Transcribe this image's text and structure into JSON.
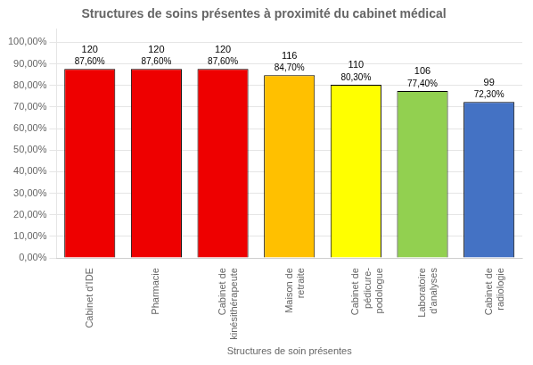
{
  "chart_data": {
    "type": "bar",
    "title": "Structures de soins présentes à proximité du cabinet médical",
    "xlabel": "Structures de soin présentes",
    "categories": [
      "Cabinet d'IDE",
      "Pharmacie",
      "Cabinet de\nkinésithérapeute",
      "Maison de\nretraite",
      "Cabinet de\npédicure-\npodologue",
      "Laboratoire\nd'analyses",
      "Cabinet de\nradiologie"
    ],
    "values": [
      87.6,
      87.6,
      87.6,
      84.7,
      80.3,
      77.4,
      72.3
    ],
    "value_labels": [
      "87,60%",
      "87,60%",
      "87,60%",
      "84,70%",
      "80,30%",
      "77,40%",
      "72,30%"
    ],
    "counts": [
      120,
      120,
      120,
      116,
      110,
      106,
      99
    ],
    "colors": [
      "#EE0000",
      "#EE0000",
      "#EE0000",
      "#FFC000",
      "#FFFF00",
      "#92D050",
      "#4472C4"
    ],
    "data_labels": true,
    "ylim": [
      0,
      106
    ],
    "yticks": [
      {
        "value": 0,
        "label": "0,00%"
      },
      {
        "value": 10,
        "label": "10,00%"
      },
      {
        "value": 20,
        "label": "20,00%"
      },
      {
        "value": 30,
        "label": "30,00%"
      },
      {
        "value": 40,
        "label": "40,00%"
      },
      {
        "value": 50,
        "label": "50,00%"
      },
      {
        "value": 60,
        "label": "60,00%"
      },
      {
        "value": 70,
        "label": "70,00%"
      },
      {
        "value": 80,
        "label": "80,00%"
      },
      {
        "value": 90,
        "label": "90,00%"
      },
      {
        "value": 100,
        "label": "100,00%"
      }
    ],
    "grid": "y"
  }
}
